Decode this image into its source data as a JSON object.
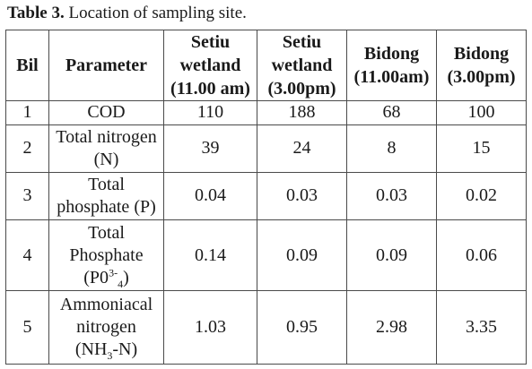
{
  "caption": {
    "label": "Table 3.",
    "text": " Location of sampling site."
  },
  "table": {
    "headers": {
      "bil": "Bil",
      "parameter": "Parameter",
      "c1": [
        "Setiu",
        "wetland",
        "(11.00 am)"
      ],
      "c2": [
        "Setiu",
        "wetland",
        "(3.00pm)"
      ],
      "c3": [
        "Bidong",
        "(11.00am)"
      ],
      "c4": [
        "Bidong",
        "(3.00pm)"
      ]
    },
    "rows": [
      {
        "bil": "1",
        "param": [
          "COD"
        ],
        "values": [
          "110",
          "188",
          "68",
          "100"
        ]
      },
      {
        "bil": "2",
        "param": [
          "Total nitrogen",
          "(N)"
        ],
        "values": [
          "39",
          "24",
          "8",
          "15"
        ]
      },
      {
        "bil": "3",
        "param": [
          "Total",
          "phosphate (P)"
        ],
        "values": [
          "0.04",
          "0.03",
          "0.03",
          "0.02"
        ]
      },
      {
        "bil": "4",
        "param": [
          "Total",
          "Phosphate",
          "(P0",
          "3-",
          "4",
          ")"
        ],
        "values": [
          "0.14",
          "0.09",
          "0.09",
          "0.06"
        ]
      },
      {
        "bil": "5",
        "param": [
          "Ammoniacal",
          "nitrogen",
          "(NH",
          "3",
          "-N)"
        ],
        "values": [
          "1.03",
          "0.95",
          "2.98",
          "3.35"
        ]
      }
    ]
  }
}
